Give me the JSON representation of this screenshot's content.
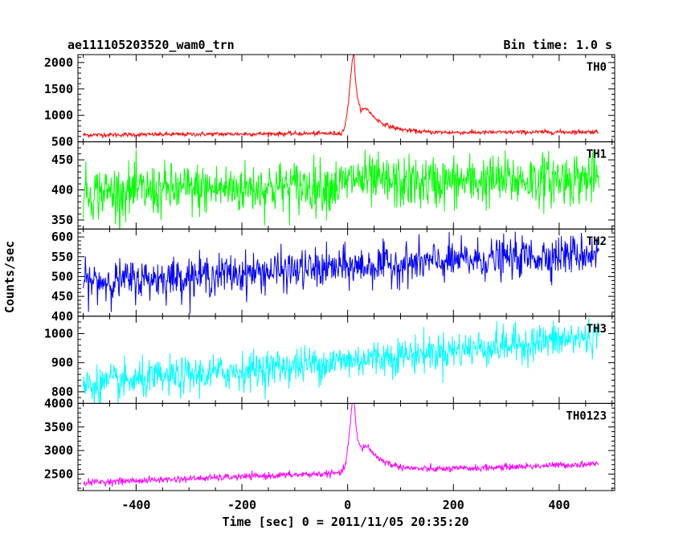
{
  "header": {
    "left_title": "ae111105203520_wam0_trn",
    "right_title": "Bin time: 1.0 s"
  },
  "chart_data": {
    "type": "line",
    "xlabel": "Time [sec] 0 = 2011/11/05 20:35:20",
    "ylabel": "Counts/sec",
    "xlim": [
      -510,
      505
    ],
    "x_ticks": [
      -400,
      -200,
      0,
      200,
      400
    ],
    "x_range": [
      -500,
      475
    ],
    "bin_time": 1.0,
    "panels": [
      {
        "name": "TH0",
        "color": "#ff0000",
        "ylim": [
          500,
          2150
        ],
        "y_ticks": [
          500,
          1000,
          1500,
          2000
        ],
        "baseline_start": 630,
        "baseline_end": 690,
        "noise": 20,
        "events": [
          {
            "peak_time": 12,
            "amplitude": 1450,
            "rise_width": 8,
            "decay_tau": 7
          },
          {
            "peak_time": 38,
            "amplitude": 420,
            "rise_width": 12,
            "decay_tau": 35
          }
        ]
      },
      {
        "name": "TH1",
        "color": "#00ff00",
        "ylim": [
          335,
          480
        ],
        "y_ticks": [
          350,
          400,
          450
        ],
        "baseline_start": 395,
        "baseline_end": 420,
        "noise": 22,
        "events": [
          {
            "peak_time": 15,
            "amplitude": 12,
            "rise_width": 10,
            "decay_tau": 30
          }
        ]
      },
      {
        "name": "TH2",
        "color": "#0000ff",
        "ylim": [
          400,
          620
        ],
        "y_ticks": [
          400,
          450,
          500,
          550,
          600
        ],
        "baseline_start": 485,
        "baseline_end": 560,
        "noise": 25,
        "events": []
      },
      {
        "name": "TH3",
        "color": "#00ffff",
        "ylim": [
          760,
          1060
        ],
        "y_ticks": [
          800,
          900,
          1000
        ],
        "baseline_start": 820,
        "baseline_end": 990,
        "noise": 32,
        "events": []
      },
      {
        "name": "TH0123",
        "color": "#ff00ff",
        "ylim": [
          2150,
          4000
        ],
        "y_ticks": [
          2500,
          3000,
          3500,
          4000
        ],
        "baseline_start": 2320,
        "baseline_end": 2720,
        "noise": 35,
        "events": [
          {
            "peak_time": 12,
            "amplitude": 1550,
            "rise_width": 8,
            "decay_tau": 7
          },
          {
            "peak_time": 38,
            "amplitude": 520,
            "rise_width": 12,
            "decay_tau": 35
          }
        ]
      }
    ]
  }
}
